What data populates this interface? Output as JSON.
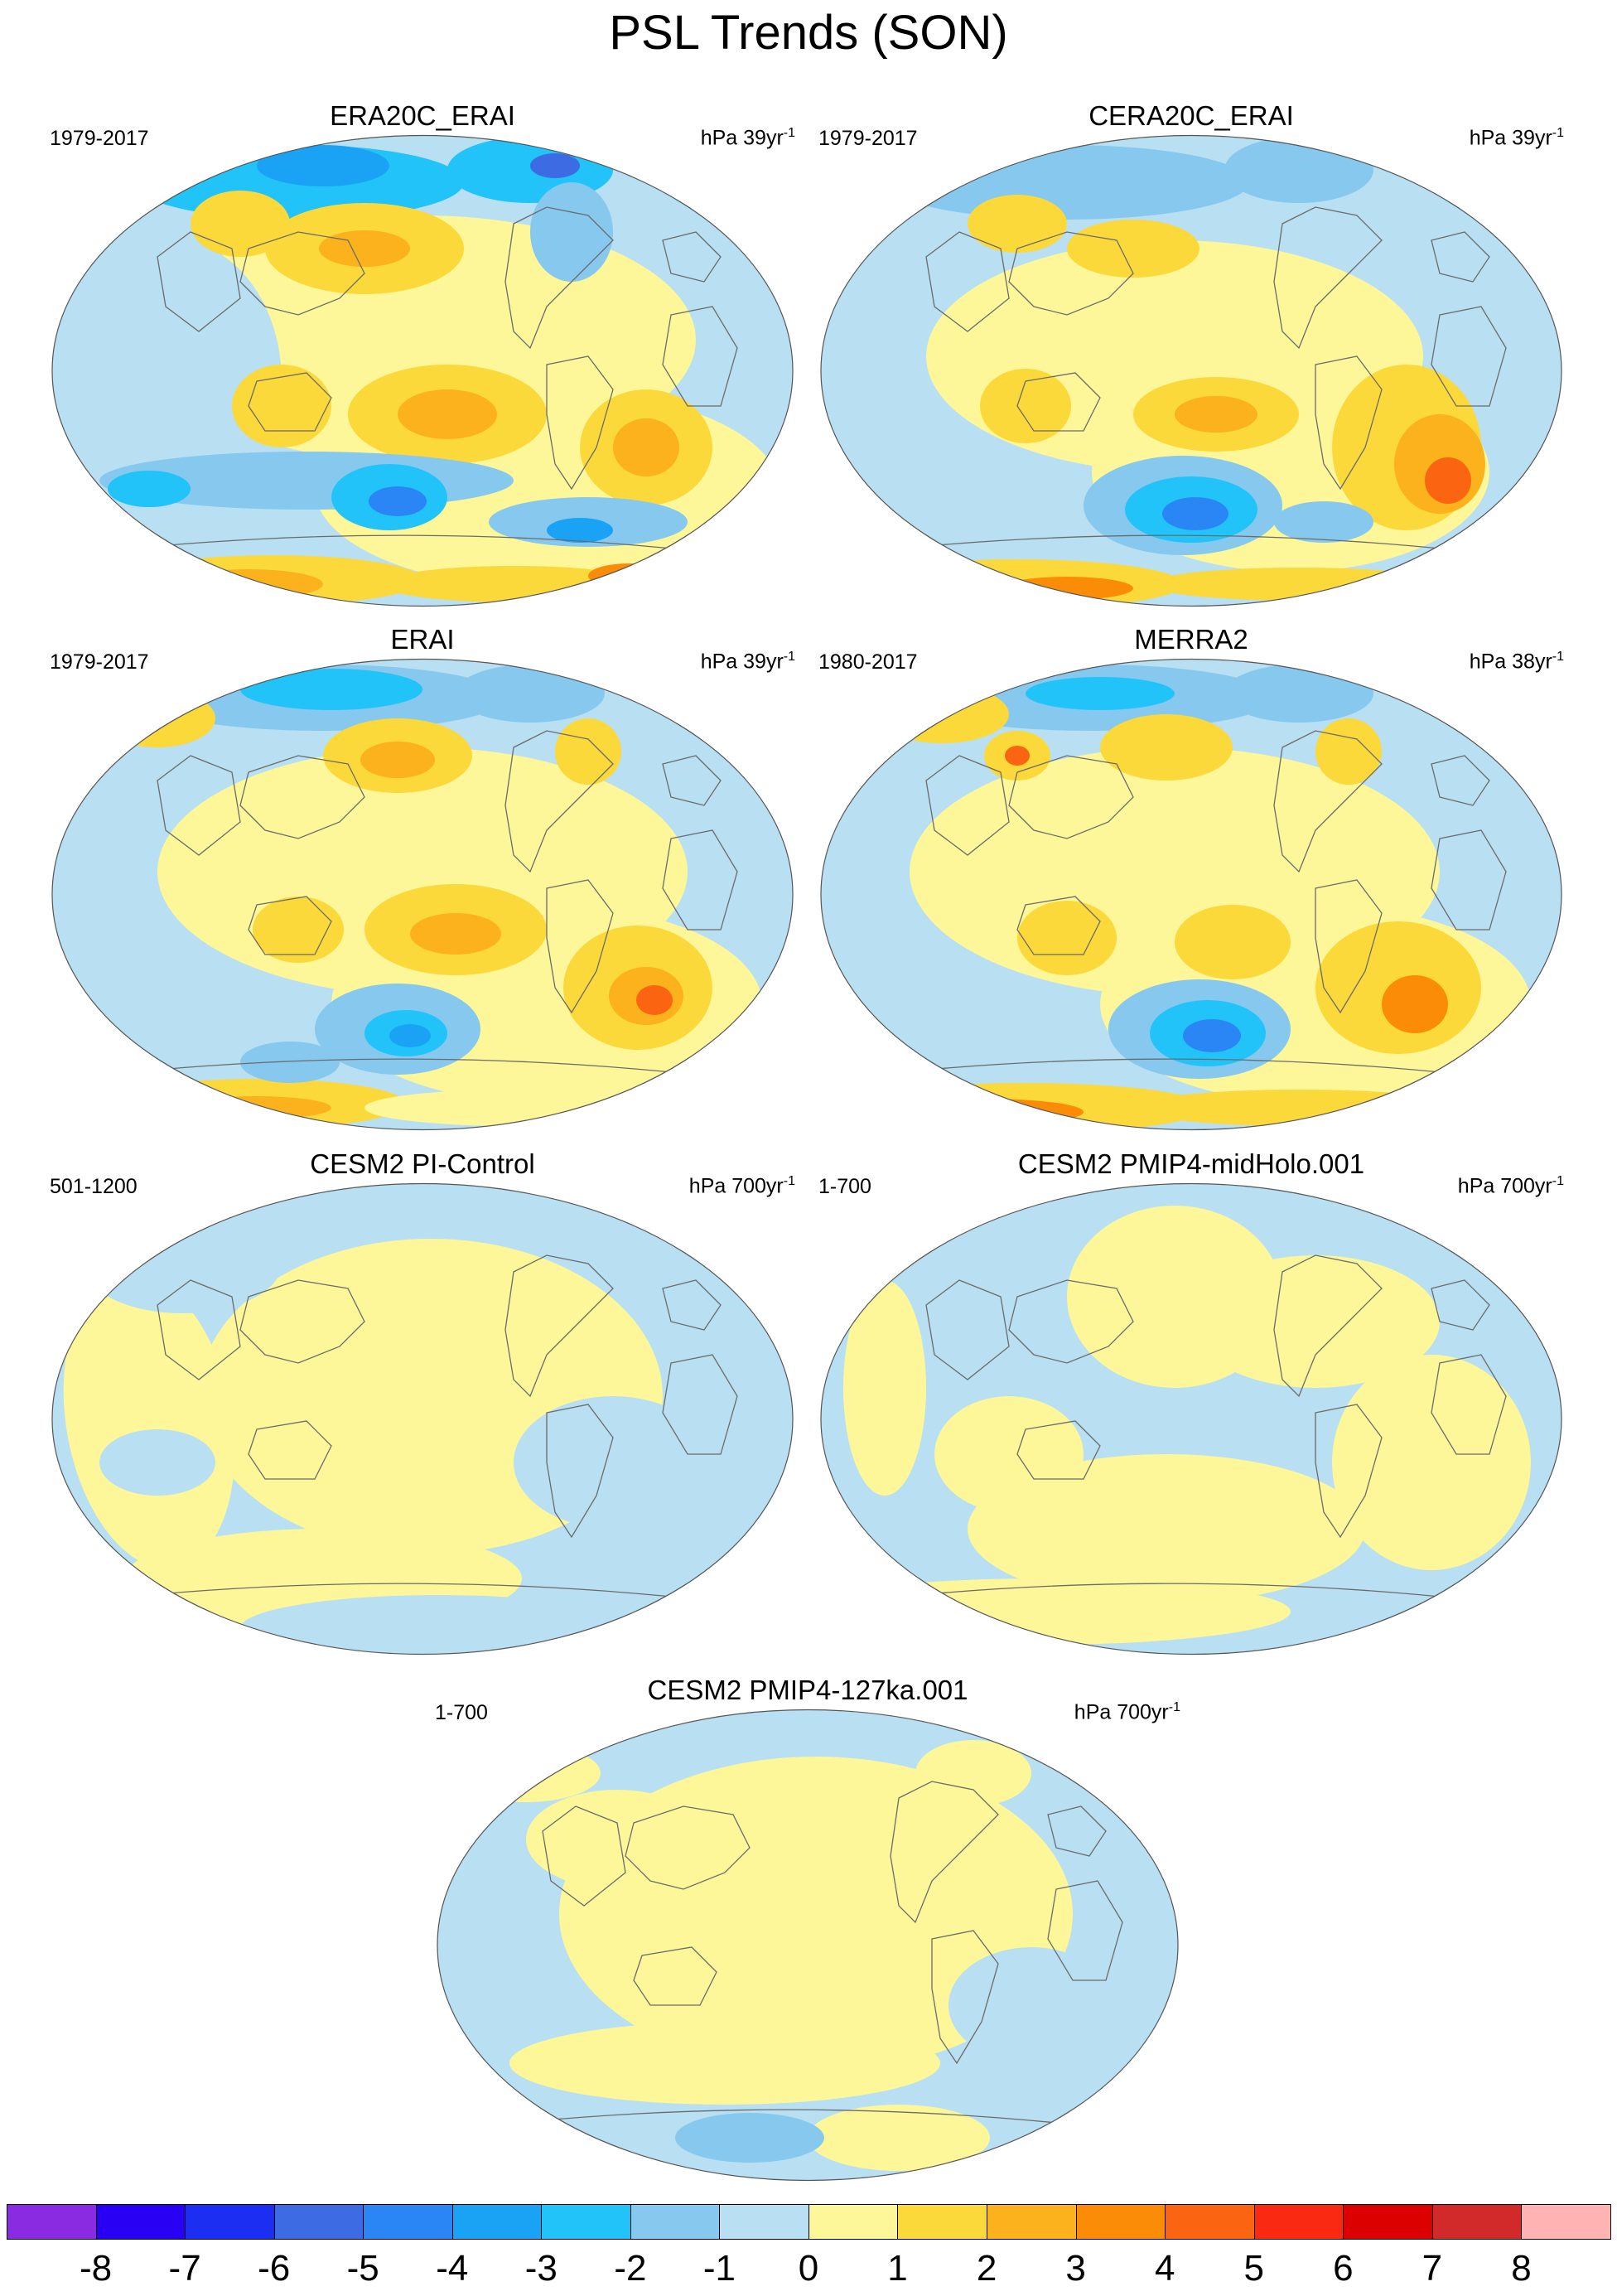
{
  "title": "PSL Trends (SON)",
  "colorscale": {
    "colors": [
      "#8a2be2",
      "#2a00f5",
      "#1b2ef2",
      "#3d6be3",
      "#2a86f5",
      "#1aa3f5",
      "#22c3f8",
      "#86c8ee",
      "#b8dff2",
      "#fdf79a",
      "#fcd93a",
      "#fbb21c",
      "#fb8c07",
      "#fb6511",
      "#fa2a12",
      "#dd0000",
      "#d22a2a",
      "#ffb3b3"
    ],
    "ticks": [
      "-8",
      "-7",
      "-6",
      "-5",
      "-4",
      "-3",
      "-2",
      "-1",
      "0",
      "1",
      "2",
      "3",
      "4",
      "5",
      "6",
      "7",
      "8"
    ]
  },
  "panels": [
    {
      "title": "ERA20C_ERAI",
      "period": "1979-2017",
      "units": "hPa 39yr",
      "units_exp": "-1"
    },
    {
      "title": "CERA20C_ERAI",
      "period": "1979-2017",
      "units": "hPa 39yr",
      "units_exp": "-1"
    },
    {
      "title": "ERAI",
      "period": "1979-2017",
      "units": "hPa 39yr",
      "units_exp": "-1"
    },
    {
      "title": "MERRA2",
      "period": "1980-2017",
      "units": "hPa 38yr",
      "units_exp": "-1"
    },
    {
      "title": "CESM2 PI-Control",
      "period": "501-1200",
      "units": "hPa 700yr",
      "units_exp": "-1"
    },
    {
      "title": "CESM2 PMIP4-midHolo.001",
      "period": "1-700",
      "units": "hPa 700yr",
      "units_exp": "-1"
    },
    {
      "title": "CESM2 PMIP4-127ka.001",
      "period": "1-700",
      "units": "hPa 700yr",
      "units_exp": "-1"
    }
  ]
}
